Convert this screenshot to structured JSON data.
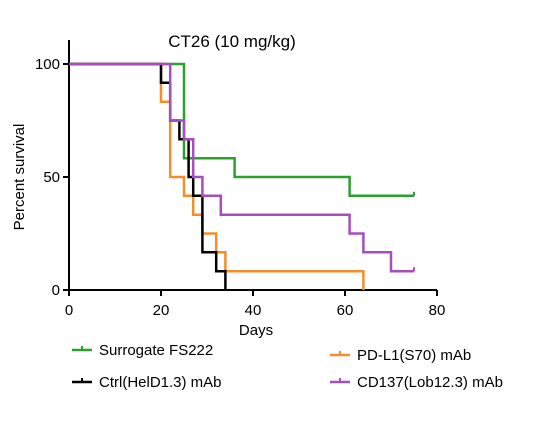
{
  "chart_data": {
    "type": "line",
    "subtype": "kaplan-meier-survival",
    "title": "CT26 (10 mg/kg)",
    "xlabel": "Days",
    "ylabel": "Percent survival",
    "xlim": [
      0,
      80
    ],
    "ylim": [
      0,
      100
    ],
    "xticks": [
      "0",
      "20",
      "40",
      "60",
      "80"
    ],
    "yticks": [
      "0",
      "50",
      "100"
    ],
    "grid": false,
    "series": [
      {
        "name": "Surrogate FS222",
        "color": "#2ca02c",
        "steps": [
          [
            0,
            100
          ],
          [
            25,
            100
          ],
          [
            25,
            58.3
          ],
          [
            36,
            58.3
          ],
          [
            36,
            50
          ],
          [
            61,
            50
          ],
          [
            61,
            41.7
          ],
          [
            75,
            41.7
          ]
        ]
      },
      {
        "name": "PD-L1(S70) mAb",
        "color": "#f28e2b",
        "steps": [
          [
            0,
            100
          ],
          [
            20,
            100
          ],
          [
            20,
            83.3
          ],
          [
            22,
            83.3
          ],
          [
            22,
            50
          ],
          [
            25,
            50
          ],
          [
            25,
            41.7
          ],
          [
            27,
            41.7
          ],
          [
            27,
            33.3
          ],
          [
            29,
            33.3
          ],
          [
            29,
            25
          ],
          [
            32,
            25
          ],
          [
            32,
            16.7
          ],
          [
            34,
            16.7
          ],
          [
            34,
            8.3
          ],
          [
            64,
            8.3
          ],
          [
            64,
            0
          ]
        ]
      },
      {
        "name": "Ctrl(HelD1.3) mAb",
        "color": "#000000",
        "steps": [
          [
            0,
            100
          ],
          [
            20,
            100
          ],
          [
            20,
            91.7
          ],
          [
            22,
            91.7
          ],
          [
            22,
            75
          ],
          [
            24,
            75
          ],
          [
            24,
            66.7
          ],
          [
            26,
            66.7
          ],
          [
            26,
            50
          ],
          [
            27,
            50
          ],
          [
            27,
            41.7
          ],
          [
            29,
            41.7
          ],
          [
            29,
            16.7
          ],
          [
            32,
            16.7
          ],
          [
            32,
            8.3
          ],
          [
            34,
            8.3
          ],
          [
            34,
            0
          ]
        ]
      },
      {
        "name": "CD137(Lob12.3) mAb",
        "color": "#a64dbf",
        "steps": [
          [
            0,
            100
          ],
          [
            22,
            100
          ],
          [
            22,
            75
          ],
          [
            25,
            75
          ],
          [
            25,
            66.7
          ],
          [
            27,
            66.7
          ],
          [
            27,
            50
          ],
          [
            29,
            50
          ],
          [
            29,
            41.7
          ],
          [
            31,
            41.7
          ],
          [
            31,
            41.7
          ],
          [
            33,
            41.7
          ],
          [
            33,
            33.3
          ],
          [
            61,
            33.3
          ],
          [
            61,
            25
          ],
          [
            64,
            25
          ],
          [
            64,
            16.7
          ],
          [
            70,
            16.7
          ],
          [
            70,
            8.3
          ],
          [
            75,
            8.3
          ]
        ]
      }
    ],
    "legend": [
      {
        "label": "Surrogate FS222",
        "color": "#2ca02c"
      },
      {
        "label": "PD-L1(S70) mAb",
        "color": "#f28e2b"
      },
      {
        "label": "Ctrl(HelD1.3) mAb",
        "color": "#000000"
      },
      {
        "label": "CD137(Lob12.3) mAb",
        "color": "#a64dbf"
      }
    ]
  }
}
